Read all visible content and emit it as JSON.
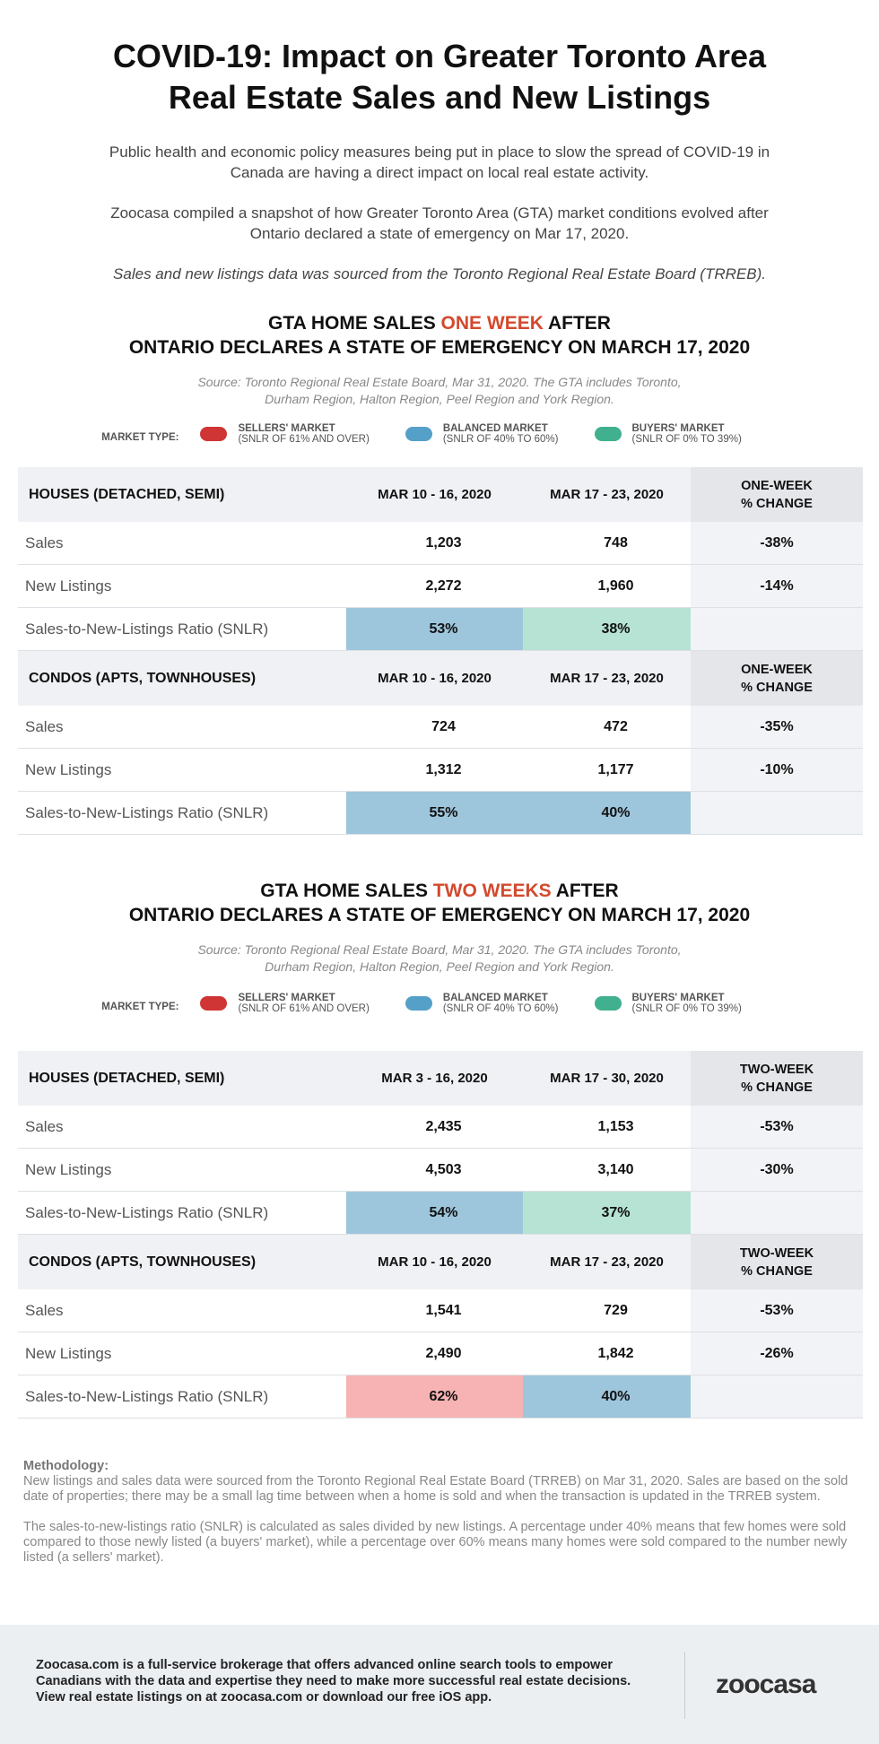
{
  "title": [
    "COVID-19: Impact on Greater Toronto Area",
    "Real Estate Sales and New Listings"
  ],
  "intro": [
    "Public health and economic policy measures being put in place to slow the spread of COVID-19 in Canada are having a direct impact on local real estate activity.",
    "Zoocasa compiled a snapshot of how Greater Toronto Area (GTA) market conditions evolved after Ontario declared a state of emergency on Mar 17, 2020.",
    "Sales and new listings data was sourced from the Toronto Regional Real Estate Board (TRREB)."
  ],
  "colors": {
    "accent": "#d24a2e",
    "sellers": "#d03535",
    "balanced": "#55a0c8",
    "buyers": "#40b08e",
    "cell_balanced": "#9dc6dc",
    "cell_buyers": "#b6e3d4",
    "cell_sellers": "#f7b3b3"
  },
  "legend": {
    "label": "MARKET TYPE:",
    "items": [
      {
        "name": "SELLERS' MARKET",
        "desc": "(SNLR OF 61% AND OVER)",
        "color": "#d03535"
      },
      {
        "name": "BALANCED MARKET",
        "desc": "(SNLR OF 40% TO 60%)",
        "color": "#55a0c8"
      },
      {
        "name": "BUYERS' MARKET",
        "desc": "(SNLR OF 0% TO 39%)",
        "color": "#40b08e"
      }
    ]
  },
  "sections": [
    {
      "heading_pre": "GTA HOME SALES ",
      "heading_accent": "ONE WEEK",
      "heading_post": " AFTER",
      "heading_line2": "ONTARIO DECLARES A STATE OF EMERGENCY ON MARCH 17, 2020",
      "source": [
        "Source: Toronto Regional Real Estate Board, Mar 31, 2020. The GTA includes Toronto,",
        "Durham Region, Halton Region, Peel Region and York Region."
      ],
      "tables": [
        {
          "headers": [
            "HOUSES (DETACHED, SEMI)",
            "MAR 10 - 16, 2020",
            "MAR 17 - 23, 2020",
            "ONE-WEEK\n% CHANGE"
          ],
          "rows": [
            [
              "Sales",
              "1,203",
              "748",
              "-38%"
            ],
            [
              "New Listings",
              "2,272",
              "1,960",
              "-14%"
            ],
            [
              "Sales-to-New-Listings Ratio (SNLR)",
              "53%",
              "38%",
              ""
            ]
          ],
          "snlr_types": [
            "balanced",
            "buyers"
          ]
        },
        {
          "headers": [
            "CONDOS (APTS, TOWNHOUSES)",
            "MAR 10 - 16, 2020",
            "MAR 17 - 23, 2020",
            "ONE-WEEK\n% CHANGE"
          ],
          "rows": [
            [
              "Sales",
              "724",
              "472",
              "-35%"
            ],
            [
              "New Listings",
              "1,312",
              "1,177",
              "-10%"
            ],
            [
              "Sales-to-New-Listings Ratio (SNLR)",
              "55%",
              "40%",
              ""
            ]
          ],
          "snlr_types": [
            "balanced",
            "balanced"
          ]
        }
      ]
    },
    {
      "heading_pre": "GTA HOME SALES ",
      "heading_accent": "TWO WEEKS",
      "heading_post": " AFTER",
      "heading_line2": "ONTARIO DECLARES A STATE OF EMERGENCY ON MARCH 17, 2020",
      "source": [
        "Source: Toronto Regional Real Estate Board, Mar 31, 2020. The GTA includes Toronto,",
        "Durham Region, Halton Region, Peel Region and York Region."
      ],
      "tables": [
        {
          "headers": [
            "HOUSES (DETACHED, SEMI)",
            "MAR 3 - 16, 2020",
            "MAR 17 - 30, 2020",
            "TWO-WEEK\n% CHANGE"
          ],
          "rows": [
            [
              "Sales",
              "2,435",
              "1,153",
              "-53%"
            ],
            [
              "New Listings",
              "4,503",
              "3,140",
              "-30%"
            ],
            [
              "Sales-to-New-Listings Ratio (SNLR)",
              "54%",
              "37%",
              ""
            ]
          ],
          "snlr_types": [
            "balanced",
            "buyers"
          ]
        },
        {
          "headers": [
            "CONDOS (APTS, TOWNHOUSES)",
            "MAR 10 - 16, 2020",
            "MAR 17 - 23, 2020",
            "TWO-WEEK\n% CHANGE"
          ],
          "rows": [
            [
              "Sales",
              "1,541",
              "729",
              "-53%"
            ],
            [
              "New Listings",
              "2,490",
              "1,842",
              "-26%"
            ],
            [
              "Sales-to-New-Listings Ratio (SNLR)",
              "62%",
              "40%",
              ""
            ]
          ],
          "snlr_types": [
            "sellers",
            "balanced"
          ]
        }
      ]
    }
  ],
  "methodology": {
    "title": "Methodology:",
    "p1": "New listings and sales data were sourced from the Toronto Regional Real Estate Board (TRREB) on Mar 31, 2020. Sales are based on the sold date of properties; there may be a small lag time between when a home is sold and when the transaction is updated in the TRREB system.",
    "p2": "The sales-to-new-listings ratio (SNLR) is calculated as sales divided by new listings. A percentage under 40% means that few homes were sold compared to those newly listed (a buyers' market), while a percentage over 60% means many homes were sold compared to the number newly listed (a sellers' market)."
  },
  "footer": {
    "lines": [
      "Zoocasa.com is a full-service brokerage that offers advanced online search tools to empower",
      "Canadians with the data and expertise they need to make more successful real estate decisions.",
      "View real estate listings on at zoocasa.com or download our free iOS app."
    ],
    "logo": "zoocasa"
  }
}
